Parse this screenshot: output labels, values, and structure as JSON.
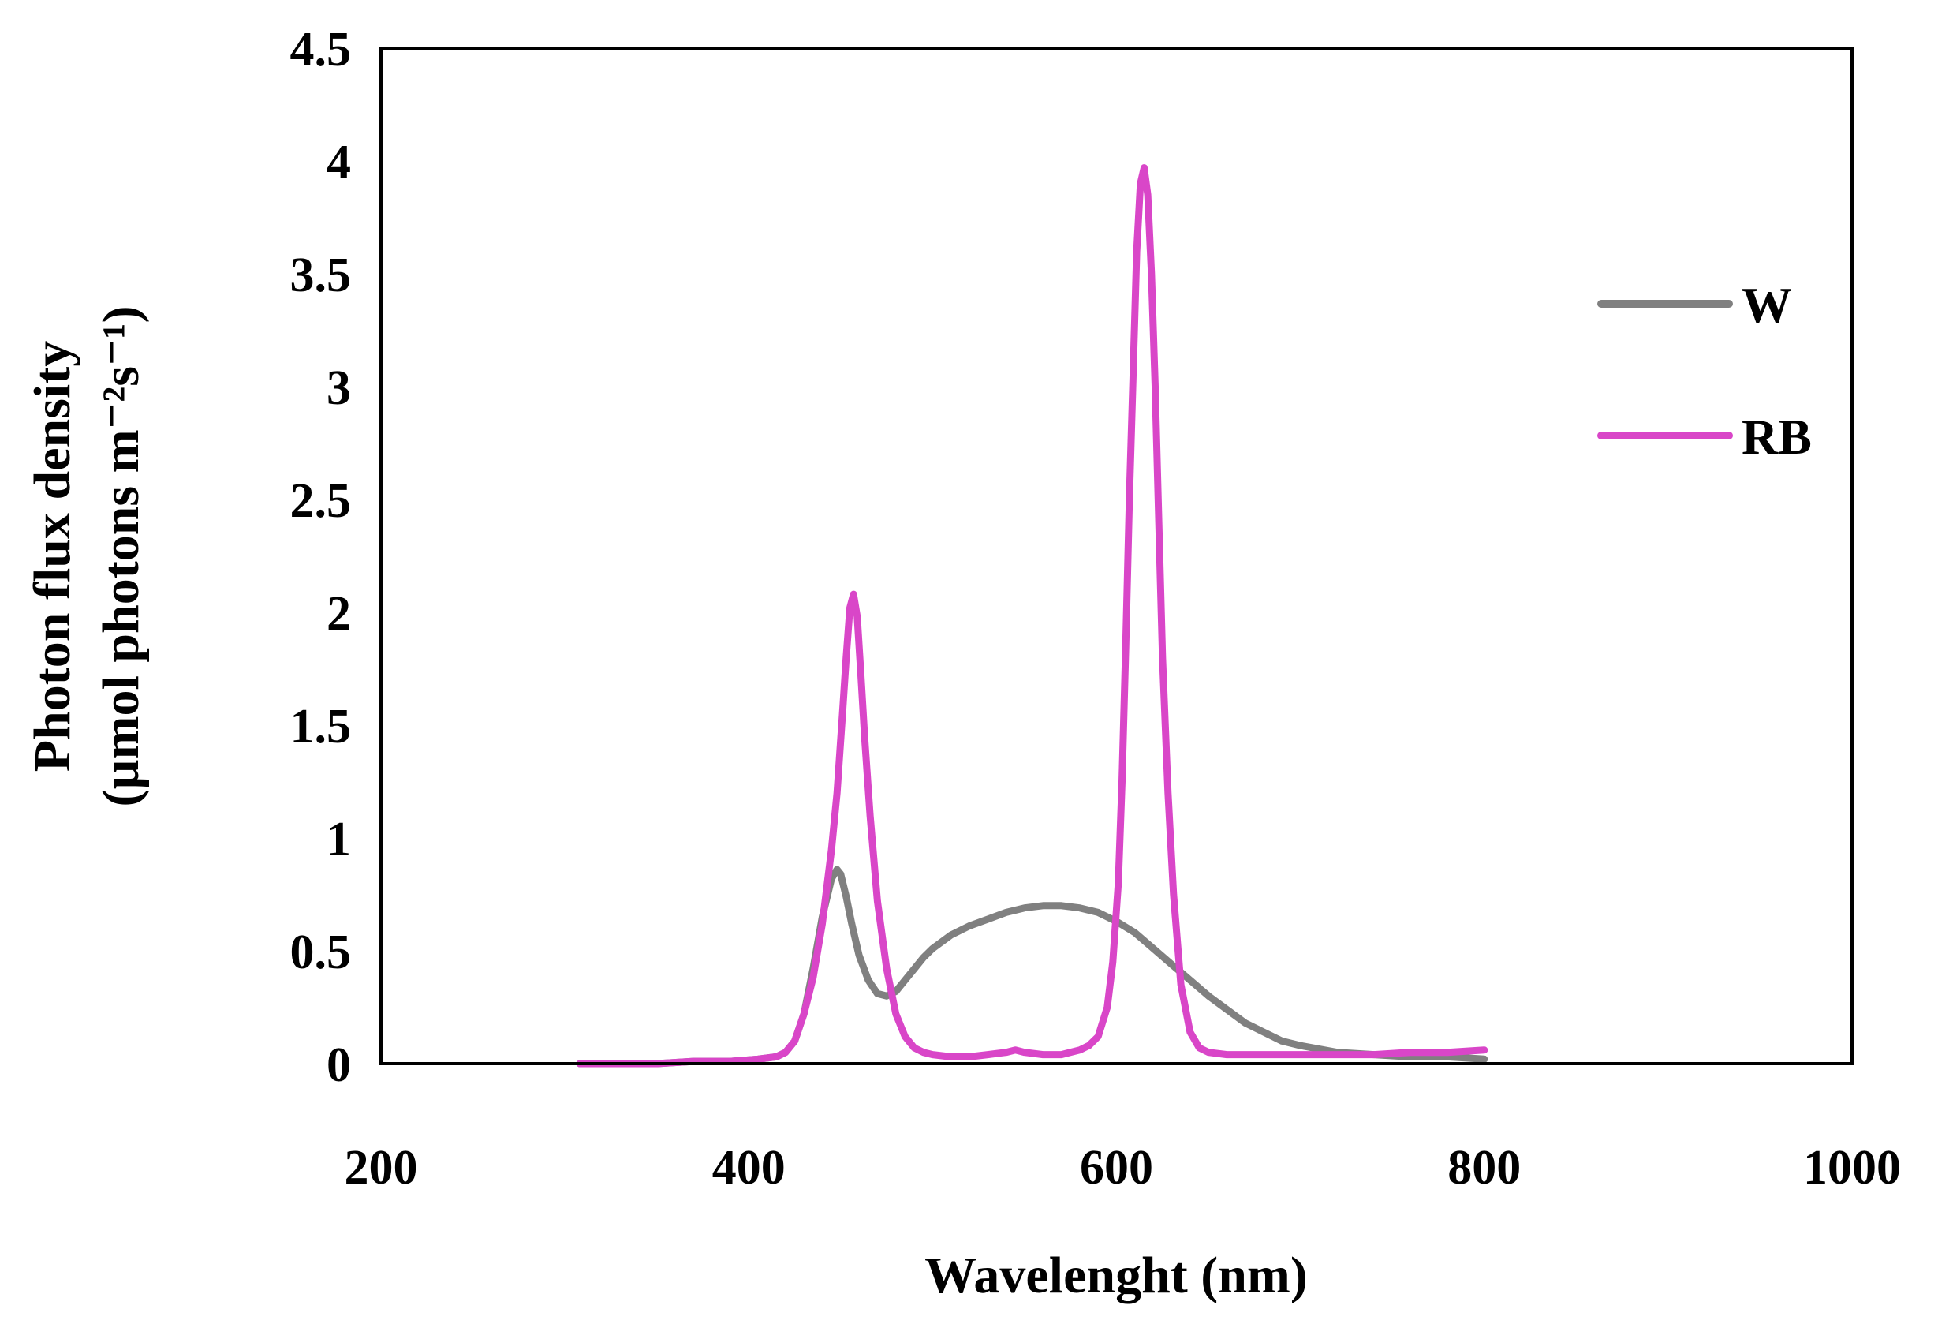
{
  "chart_data": {
    "type": "line",
    "title": "",
    "xlabel": "Wavelenght (nm)",
    "ylabel_line1": "Photon flux density",
    "ylabel_line2": "(µmol photons m⁻²s⁻¹)",
    "xlim": [
      200,
      1000
    ],
    "ylim": [
      0,
      4.5
    ],
    "x_ticks": [
      200,
      400,
      600,
      800,
      1000
    ],
    "y_ticks": [
      0,
      0.5,
      1,
      1.5,
      2,
      2.5,
      3,
      3.5,
      4,
      4.5
    ],
    "y_tick_labels": [
      "0",
      "0.5",
      "1",
      "1.5",
      "2",
      "2.5",
      "3",
      "3.5",
      "4",
      "4.5"
    ],
    "x_tick_labels": [
      "200",
      "400",
      "600",
      "800",
      "1000"
    ],
    "grid": false,
    "legend_position": "right",
    "series": [
      {
        "name": "W",
        "color": "#808080",
        "x": [
          308,
          330,
          350,
          370,
          390,
          405,
          415,
          420,
          425,
          430,
          435,
          440,
          445,
          448,
          450,
          453,
          456,
          460,
          465,
          470,
          475,
          480,
          485,
          490,
          495,
          500,
          510,
          520,
          530,
          540,
          550,
          560,
          570,
          580,
          590,
          600,
          610,
          620,
          630,
          640,
          650,
          660,
          670,
          680,
          690,
          700,
          720,
          740,
          760,
          780,
          800
        ],
        "values": [
          0.0,
          0.0,
          0.0,
          0.01,
          0.01,
          0.02,
          0.03,
          0.05,
          0.1,
          0.22,
          0.42,
          0.65,
          0.82,
          0.86,
          0.84,
          0.74,
          0.62,
          0.48,
          0.37,
          0.31,
          0.3,
          0.32,
          0.37,
          0.42,
          0.47,
          0.51,
          0.57,
          0.61,
          0.64,
          0.67,
          0.69,
          0.7,
          0.7,
          0.69,
          0.67,
          0.63,
          0.58,
          0.51,
          0.44,
          0.37,
          0.3,
          0.24,
          0.18,
          0.14,
          0.1,
          0.08,
          0.05,
          0.04,
          0.03,
          0.03,
          0.02
        ]
      },
      {
        "name": "RB",
        "color": "#D946C8",
        "x": [
          308,
          330,
          350,
          370,
          390,
          405,
          415,
          420,
          425,
          430,
          435,
          440,
          445,
          448,
          451,
          453,
          455,
          457,
          459,
          461,
          463,
          466,
          470,
          475,
          480,
          485,
          490,
          495,
          500,
          510,
          520,
          530,
          540,
          545,
          550,
          560,
          570,
          580,
          585,
          590,
          595,
          598,
          601,
          603,
          605,
          607,
          609,
          611,
          613,
          615,
          617,
          619,
          621,
          623,
          625,
          628,
          631,
          635,
          640,
          645,
          650,
          660,
          680,
          700,
          720,
          740,
          760,
          780,
          800
        ],
        "values": [
          0.0,
          0.0,
          0.0,
          0.01,
          0.01,
          0.02,
          0.03,
          0.05,
          0.1,
          0.22,
          0.38,
          0.62,
          0.95,
          1.2,
          1.55,
          1.8,
          2.02,
          2.08,
          1.98,
          1.72,
          1.45,
          1.1,
          0.72,
          0.42,
          0.22,
          0.12,
          0.07,
          0.05,
          0.04,
          0.03,
          0.03,
          0.04,
          0.05,
          0.06,
          0.05,
          0.04,
          0.04,
          0.06,
          0.08,
          0.12,
          0.25,
          0.45,
          0.8,
          1.25,
          1.85,
          2.5,
          3.05,
          3.6,
          3.9,
          3.97,
          3.85,
          3.5,
          3.0,
          2.4,
          1.8,
          1.2,
          0.75,
          0.35,
          0.14,
          0.07,
          0.05,
          0.04,
          0.04,
          0.04,
          0.04,
          0.04,
          0.05,
          0.05,
          0.06
        ]
      }
    ]
  }
}
